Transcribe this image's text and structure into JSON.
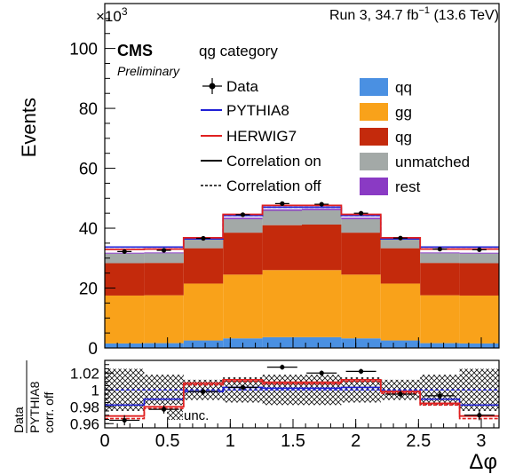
{
  "header": {
    "multiplier": "×10",
    "multiplier_exp": "3",
    "lumi_prefix": "Run 3, 34.7 fb",
    "lumi_exp": "−1",
    "lumi_suffix": " (13.6 TeV)"
  },
  "labels": {
    "cms": "CMS",
    "preliminary": "Preliminary",
    "category": "qg category",
    "unc": "unc."
  },
  "legend": {
    "left": [
      {
        "key": "data",
        "label": "Data"
      },
      {
        "key": "pythia",
        "label": "PYTHIA8",
        "color": "#1f1fd6"
      },
      {
        "key": "herwig",
        "label": "HERWIG7",
        "color": "#e02020"
      },
      {
        "key": "corr_on",
        "label": "Correlation on"
      },
      {
        "key": "corr_off",
        "label": "Correlation off"
      }
    ],
    "right": [
      {
        "key": "qq",
        "label": "qq",
        "color": "#4a90e2"
      },
      {
        "key": "gg",
        "label": "gg",
        "color": "#f9a21a"
      },
      {
        "key": "qg",
        "label": "qg",
        "color": "#c42a0c"
      },
      {
        "key": "unmatched",
        "label": "unmatched",
        "color": "#a3a9a7"
      },
      {
        "key": "rest",
        "label": "rest",
        "color": "#8a3ac4"
      }
    ]
  },
  "chart_data": [
    {
      "type": "bar",
      "stacked": true,
      "ylabel": "Events",
      "xlim": [
        0,
        3.1416
      ],
      "ylim": [
        0,
        115
      ],
      "y_scale_factor": "10^3",
      "xticks": [
        0,
        0.5,
        1,
        1.5,
        2,
        2.5,
        3
      ],
      "yticks": [
        0,
        20,
        40,
        60,
        80,
        100
      ],
      "bin_edges": [
        0,
        0.3142,
        0.6283,
        0.9425,
        1.2566,
        1.5708,
        1.885,
        2.1991,
        2.5133,
        2.8274,
        3.1416
      ],
      "series": [
        {
          "name": "qq",
          "values": [
            1.5,
            1.6,
            2.5,
            3.2,
            3.6,
            3.6,
            3.2,
            2.5,
            1.6,
            1.5
          ]
        },
        {
          "name": "gg",
          "values": [
            16.0,
            16.0,
            19.0,
            21.3,
            22.4,
            22.4,
            21.3,
            19.0,
            16.0,
            16.0
          ]
        },
        {
          "name": "qg",
          "values": [
            10.8,
            10.8,
            11.8,
            14.0,
            15.0,
            15.2,
            14.0,
            11.8,
            10.8,
            10.8
          ]
        },
        {
          "name": "unmatched",
          "values": [
            3.2,
            3.2,
            2.9,
            4.5,
            4.8,
            4.8,
            4.5,
            2.9,
            3.2,
            3.2
          ]
        },
        {
          "name": "rest",
          "values": [
            0.3,
            0.3,
            0.3,
            0.5,
            0.5,
            0.5,
            0.5,
            0.3,
            0.3,
            0.3
          ]
        }
      ],
      "pythia8": [
        33.7,
        33.7,
        36.4,
        44.2,
        47.0,
        47.0,
        44.2,
        36.4,
        33.7,
        33.7
      ],
      "herwig7": [
        32.9,
        33.0,
        36.8,
        44.6,
        47.6,
        47.6,
        44.6,
        36.8,
        33.0,
        33.0
      ],
      "data": {
        "x": [
          0.157,
          0.471,
          0.785,
          1.1,
          1.414,
          1.728,
          2.042,
          2.356,
          2.67,
          2.985
        ],
        "y": [
          32.2,
          32.6,
          36.6,
          44.5,
          48.2,
          48.0,
          45.0,
          36.7,
          33.0,
          32.8
        ]
      }
    },
    {
      "type": "line",
      "ylabel": "Data / PYTHIA8 corr. off",
      "xlabel": "Δφ",
      "xlim": [
        0,
        3.1416
      ],
      "ylim": [
        0.955,
        1.035
      ],
      "xticks": [
        0,
        0.5,
        1,
        1.5,
        2,
        2.5,
        3
      ],
      "yticks": [
        0.96,
        0.98,
        1,
        1.02
      ],
      "bin_edges": [
        0,
        0.3142,
        0.6283,
        0.9425,
        1.2566,
        1.5708,
        1.885,
        2.1991,
        2.5133,
        2.8274,
        3.1416
      ],
      "unc_band": {
        "lo": [
          0.975,
          0.982,
          0.988,
          0.985,
          0.982,
          0.982,
          0.985,
          0.988,
          0.982,
          0.975
        ],
        "hi": [
          1.025,
          1.018,
          1.012,
          1.015,
          1.018,
          1.018,
          1.015,
          1.012,
          1.018,
          1.025
        ]
      },
      "herwig_on": [
        0.969,
        0.98,
        1.008,
        1.012,
        1.009,
        1.009,
        1.012,
        0.998,
        0.984,
        0.969
      ],
      "herwig_off": [
        0.966,
        0.978,
        1.006,
        1.01,
        1.007,
        1.007,
        1.01,
        0.996,
        0.982,
        0.966
      ],
      "pythia_on": [
        0.982,
        0.989,
        0.998,
        1.003,
        1.002,
        1.002,
        1.003,
        0.998,
        0.989,
        0.982
      ],
      "pythia_off": [
        1.0,
        1.0,
        1.0,
        1.0,
        1.0,
        1.0,
        1.0,
        1.0,
        1.0,
        1.0
      ],
      "data": {
        "x": [
          0.157,
          0.471,
          0.785,
          1.1,
          1.414,
          1.728,
          2.042,
          2.356,
          2.67,
          2.985
        ],
        "y": [
          0.964,
          0.977,
          0.998,
          1.003,
          1.027,
          1.02,
          1.022,
          0.995,
          0.993,
          0.97
        ],
        "err": [
          0.006,
          0.005,
          0.004,
          0.003,
          0.003,
          0.003,
          0.003,
          0.004,
          0.005,
          0.006
        ]
      }
    }
  ]
}
